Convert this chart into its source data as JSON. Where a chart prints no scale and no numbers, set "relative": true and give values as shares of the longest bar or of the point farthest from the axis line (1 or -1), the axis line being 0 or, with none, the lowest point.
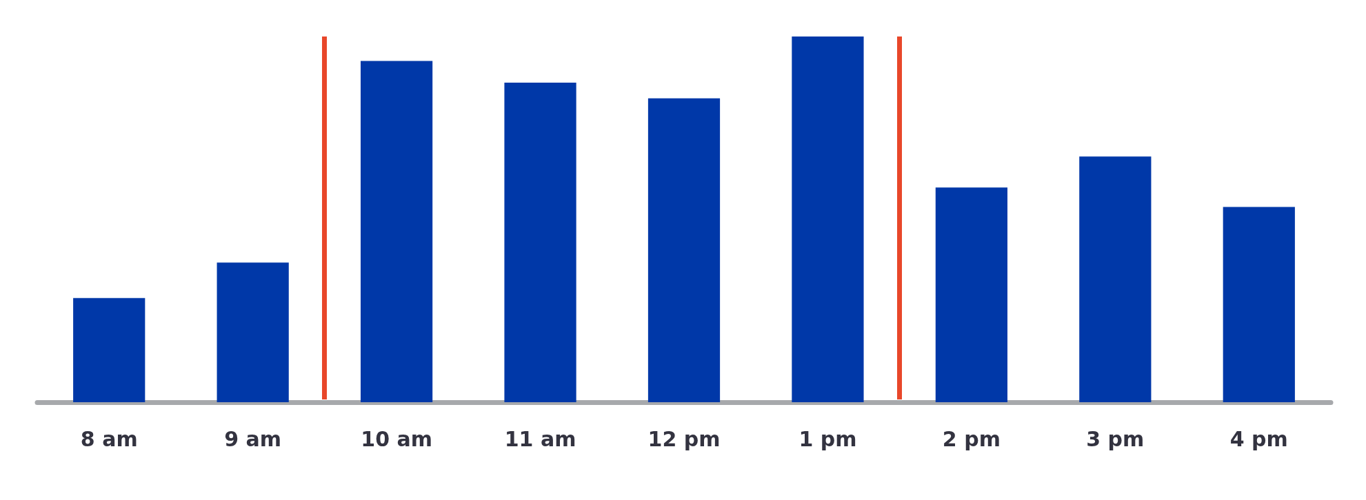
{
  "chart_data": {
    "type": "bar",
    "relative": true,
    "categories": [
      "8 am",
      "9 am",
      "10 am",
      "11 am",
      "12 pm",
      "1 pm",
      "2 pm",
      "3 pm",
      "4 pm"
    ],
    "values": [
      0.285,
      0.382,
      0.933,
      0.874,
      0.831,
      1,
      0.587,
      0.672,
      0.534
    ],
    "color": "#0038a8"
  }
}
